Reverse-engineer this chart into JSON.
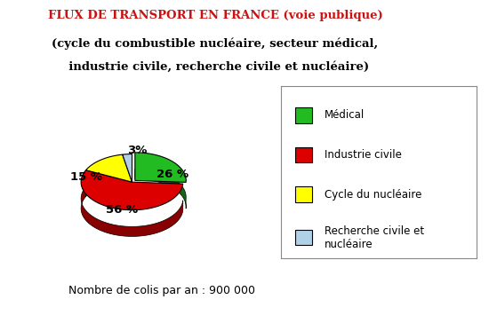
{
  "title_line1": "FLUX DE TRANSPORT EN FRANCE (voie publique)",
  "title_line2": "(cycle du combustible nucléaire, secteur médical,",
  "title_line3": "  industrie civile, recherche civile et nucléaire)",
  "slices": [
    26,
    56,
    15,
    3
  ],
  "labels": [
    "26 %",
    "56 %",
    "15 %",
    "3%"
  ],
  "colors": [
    "#22bb22",
    "#dd0000",
    "#ffff00",
    "#b0d0e8"
  ],
  "shadow_colors": [
    "#166616",
    "#880000",
    "#aaaa00",
    "#7090a8"
  ],
  "legend_labels": [
    "Médical",
    "Industrie civile",
    "Cycle du nucléaire",
    "Recherche civile et\nnucléaire"
  ],
  "footnote": "Nombre de colis par an : 900 000",
  "background_color": "#ffffff",
  "title_color1": "#cc1111",
  "title_color2": "#000000",
  "start_angle": 90,
  "explode_index": 0,
  "explode_amount": 0.08
}
